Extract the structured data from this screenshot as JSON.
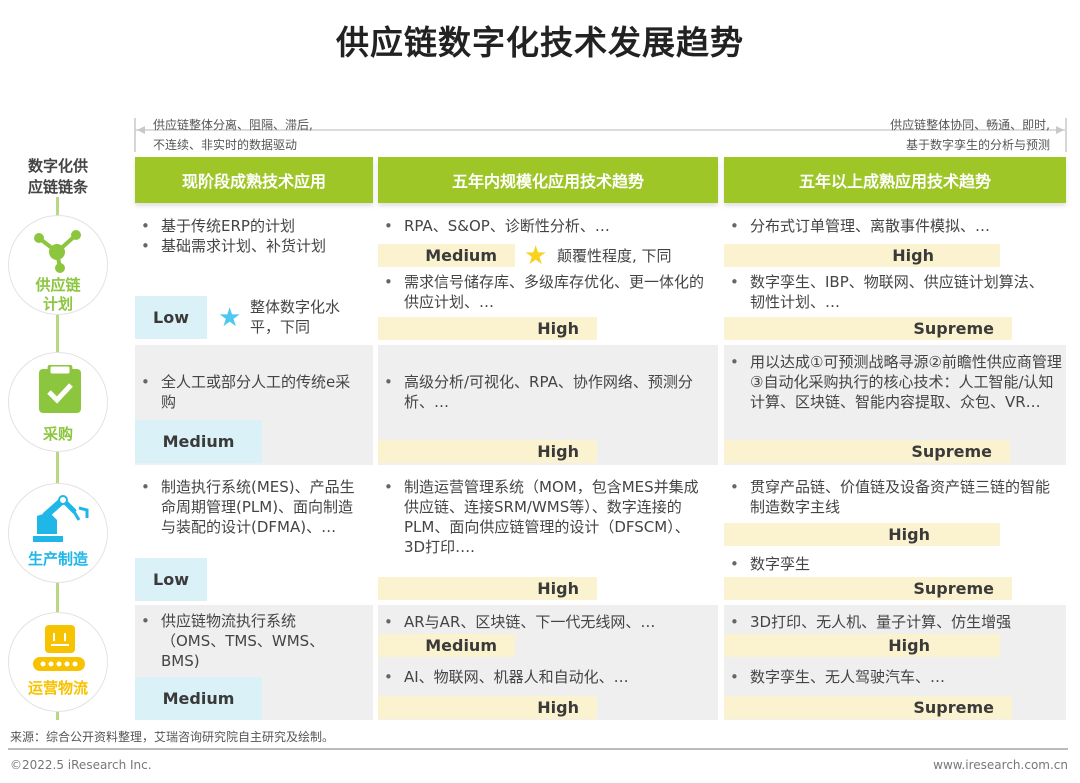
{
  "title": "供应链数字化技术发展趋势",
  "range": {
    "left": [
      "供应链整体分离、阻隔、滞后,",
      "不连续、非实时的数据驱动"
    ],
    "right": [
      "供应链整体协同、畅通、即时,",
      "基于数字孪生的分析与预测"
    ]
  },
  "axis_label": [
    "数字化供",
    "应链链条"
  ],
  "columns": [
    "现阶段成熟技术应用",
    "五年内规模化应用技术趋势",
    "五年以上成熟应用技术趋势"
  ],
  "rows": [
    {
      "label": [
        "供应链",
        "计划"
      ],
      "color": "#8cc63f",
      "icon": "network-nodes-icon",
      "c1": {
        "items": [
          "基于传统ERP的计划",
          "基础需求计划、补货计划"
        ],
        "level": "Low",
        "legend": "整体数字化水平，下同"
      },
      "c2": {
        "items": [
          "RPA、S&OP、诊断性分析、…",
          "需求信号储存库、多级库存优化、更一体化的供应计划、…"
        ],
        "levels": [
          "Medium",
          "High"
        ],
        "legend": "颠覆性程度, 下同"
      },
      "c3": {
        "items": [
          "分布式订单管理、离散事件模拟、…",
          "数字孪生、IBP、物联网、供应链计划算法、韧性计划、…"
        ],
        "levels": [
          "High",
          "Supreme"
        ]
      }
    },
    {
      "label": [
        "采购"
      ],
      "color": "#8cc63f",
      "icon": "clipboard-check-icon",
      "c1": {
        "items": [
          "全人工或部分人工的传统e采购"
        ],
        "level": "Medium"
      },
      "c2": {
        "items": [
          "高级分析/可视化、RPA、协作网络、预测分析、…"
        ],
        "levels": [
          "High"
        ]
      },
      "c3": {
        "items": [
          "用以达成①可预测战略寻源②前瞻性供应商管理③自动化采购执行的核心技术：人工智能/认知计算、区块链、智能内容提取、众包、VR…"
        ],
        "levels": [
          "Supreme"
        ]
      }
    },
    {
      "label": [
        "生产制造"
      ],
      "color": "#1fb6e8",
      "icon": "robot-arm-icon",
      "c1": {
        "items": [
          "制造执行系统(MES)、产品生命周期管理(PLM)、面向制造与装配的设计(DFMA)、…"
        ],
        "level": "Low"
      },
      "c2": {
        "items": [
          "制造运营管理系统（MOM，包含MES并集成供应链、连接SRM/WMS等）、数字连接的PLM、面向供应链管理的设计（DFSCM）、3D打印…."
        ],
        "levels": [
          "High"
        ]
      },
      "c3": {
        "items": [
          "贯穿产品链、价值链及设备资产链三链的智能制造数字主线",
          "数字孪生"
        ],
        "levels": [
          "High",
          "Supreme"
        ]
      }
    },
    {
      "label": [
        "运营物流"
      ],
      "color": "#f7c200",
      "icon": "conveyor-box-icon",
      "c1": {
        "items": [
          "供应链物流执行系统（OMS、TMS、WMS、BMS)"
        ],
        "level": "Medium"
      },
      "c2": {
        "items": [
          "AR与AR、区块链、下一代无线网、…",
          "AI、物联网、机器人和自动化、…"
        ],
        "levels": [
          "Medium",
          "High"
        ]
      },
      "c3": {
        "items": [
          "3D打印、无人机、量子计算、仿生增强",
          "数字孪生、无人驾驶汽车、…"
        ],
        "levels": [
          "High",
          "Supreme"
        ]
      }
    }
  ],
  "colors": {
    "header": "#9dc626",
    "low_medium_badge": "#dbf1f8",
    "level_badge": "#fbf3cf",
    "star_blue": "#4fc8ef",
    "star_yellow": "#f9d21e"
  },
  "source": "来源：综合公开资料整理，艾瑞咨询研究院自主研究及绘制。",
  "footer": {
    "copyright": "©2022.5 iResearch Inc.",
    "url": "www.iresearch.com.cn"
  }
}
